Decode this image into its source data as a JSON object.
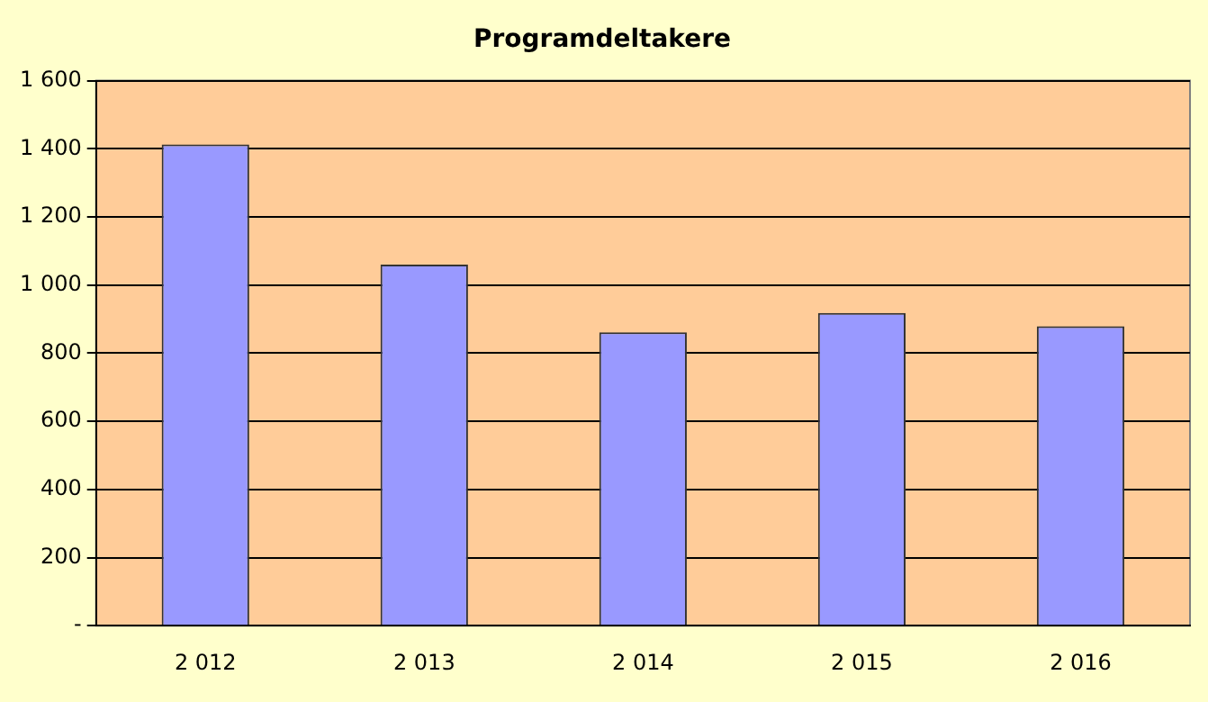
{
  "chart_data": {
    "type": "bar",
    "title": "Programdeltakere",
    "categories": [
      "2 012",
      "2 013",
      "2 014",
      "2 015",
      "2 016"
    ],
    "values": [
      1413,
      1060,
      861,
      918,
      879
    ],
    "color": "#9999ff",
    "ylim": [
      0,
      1600
    ],
    "yticks": [
      {
        "value": 0,
        "label": "-"
      },
      {
        "value": 200,
        "label": "200"
      },
      {
        "value": 400,
        "label": "400"
      },
      {
        "value": 600,
        "label": "600"
      },
      {
        "value": 800,
        "label": "800"
      },
      {
        "value": 1000,
        "label": "1 000"
      },
      {
        "value": 1200,
        "label": "1 200"
      },
      {
        "value": 1400,
        "label": "1 400"
      },
      {
        "value": 1600,
        "label": "1 600"
      }
    ],
    "grid": "y",
    "legend": false
  }
}
